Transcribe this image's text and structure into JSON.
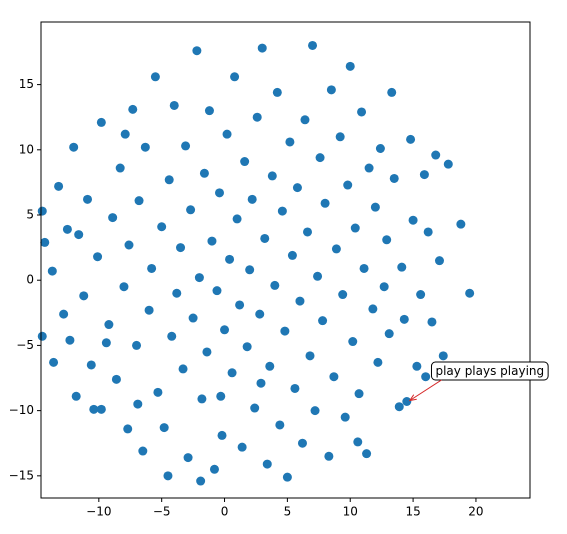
{
  "chart_data": {
    "type": "scatter",
    "color": "#1f77b4",
    "x": [
      -14.5,
      -14.3,
      -14.5,
      -13.7,
      -13.2,
      -12.8,
      -12.3,
      -12.0,
      -11.6,
      -11.2,
      -10.9,
      -10.6,
      -10.4,
      -9.8,
      -10.1,
      -9.8,
      -9.2,
      -8.9,
      -8.6,
      -8.3,
      -8.0,
      -7.7,
      -7.6,
      -7.3,
      -7.0,
      -6.8,
      -6.5,
      -6.3,
      -6.0,
      -5.8,
      -5.5,
      -5.3,
      -5.0,
      -4.8,
      -4.5,
      -4.4,
      -4.2,
      -4.0,
      -3.8,
      -3.5,
      -3.3,
      -3.1,
      -2.9,
      -2.7,
      -2.5,
      -2.2,
      -2.0,
      -1.8,
      -1.6,
      -1.4,
      -1.2,
      -1.0,
      -0.8,
      -0.6,
      -0.4,
      -0.2,
      0.0,
      0.2,
      0.4,
      0.6,
      0.8,
      1.0,
      1.2,
      1.4,
      1.6,
      1.8,
      2.0,
      2.2,
      2.4,
      2.6,
      2.8,
      3.0,
      3.2,
      3.4,
      3.6,
      3.8,
      4.0,
      4.2,
      4.4,
      4.6,
      4.8,
      5.0,
      5.2,
      5.4,
      5.6,
      5.8,
      6.0,
      6.2,
      6.4,
      6.6,
      6.8,
      7.0,
      7.2,
      7.4,
      7.6,
      7.8,
      8.0,
      8.3,
      8.5,
      8.7,
      8.9,
      9.2,
      9.4,
      9.6,
      9.8,
      10.0,
      10.2,
      10.4,
      10.7,
      10.9,
      11.1,
      11.3,
      11.5,
      11.8,
      12.0,
      12.2,
      12.4,
      12.7,
      12.9,
      13.1,
      13.3,
      13.5,
      13.9,
      14.1,
      14.3,
      14.5,
      14.8,
      15.0,
      15.3,
      15.6,
      15.9,
      16.2,
      16.5,
      16.8,
      17.1,
      17.4,
      17.8,
      18.8,
      19.5,
      -13.6,
      -11.8,
      -9.4,
      -6.9,
      -1.9,
      10.6,
      16.0,
      -12.5,
      -7.9,
      -0.3,
      2.9
    ],
    "values": [
      5.3,
      2.9,
      -4.3,
      0.7,
      7.2,
      -2.6,
      -4.6,
      10.2,
      3.5,
      -1.2,
      6.2,
      -6.5,
      -9.9,
      -9.9,
      1.8,
      12.1,
      -3.4,
      4.8,
      -7.6,
      8.6,
      -0.5,
      -11.4,
      2.7,
      13.1,
      -5.0,
      6.1,
      -13.1,
      10.2,
      -2.3,
      0.9,
      15.6,
      -8.6,
      4.1,
      -11.3,
      -15.0,
      7.7,
      -4.3,
      13.4,
      -1.0,
      2.5,
      -6.8,
      10.3,
      -13.6,
      5.4,
      -2.9,
      17.6,
      0.2,
      -9.1,
      8.2,
      -5.5,
      13.0,
      3.0,
      -14.5,
      -0.8,
      6.7,
      -11.9,
      -3.8,
      11.2,
      1.6,
      -7.1,
      15.6,
      4.7,
      -1.9,
      -12.8,
      9.1,
      -5.1,
      0.8,
      6.2,
      -9.8,
      12.5,
      -2.6,
      17.8,
      3.2,
      -14.1,
      -6.6,
      8.0,
      -0.4,
      14.4,
      -11.1,
      5.3,
      -3.9,
      -15.1,
      10.6,
      1.9,
      -8.3,
      7.1,
      -1.6,
      -12.5,
      12.3,
      3.7,
      -5.8,
      18.0,
      -10.0,
      0.3,
      9.4,
      -3.1,
      5.9,
      -13.5,
      14.6,
      -7.4,
      2.4,
      11.0,
      -1.1,
      -10.5,
      7.3,
      16.4,
      -4.7,
      4.0,
      -8.7,
      12.9,
      0.9,
      -13.3,
      8.6,
      -2.2,
      5.6,
      -6.3,
      10.1,
      -0.5,
      3.1,
      -4.1,
      14.4,
      7.8,
      -9.7,
      1.0,
      -3.0,
      -9.3,
      10.8,
      4.6,
      -6.6,
      -1.1,
      8.1,
      3.7,
      -3.2,
      9.6,
      1.5,
      -5.8,
      8.9,
      4.3,
      -1.0,
      -6.3,
      -8.9,
      -4.8,
      -9.5,
      -15.4,
      -12.4,
      -7.4,
      3.9,
      11.2,
      -8.9,
      -7.9
    ],
    "xlim": [
      -14.6,
      24.3
    ],
    "ylim": [
      -16.7,
      19.8
    ],
    "xticks": [
      {
        "value": -10,
        "label": "−10"
      },
      {
        "value": -5,
        "label": "−5"
      },
      0,
      5,
      10,
      15,
      20
    ],
    "yticks": [
      {
        "value": -15,
        "label": "−15"
      },
      {
        "value": -10,
        "label": "−10"
      },
      {
        "value": -5,
        "label": "−5"
      },
      0,
      5,
      10,
      15
    ],
    "grid": false,
    "annotation": {
      "text": "play plays playing",
      "x": 14.5,
      "y": -9.3
    }
  }
}
